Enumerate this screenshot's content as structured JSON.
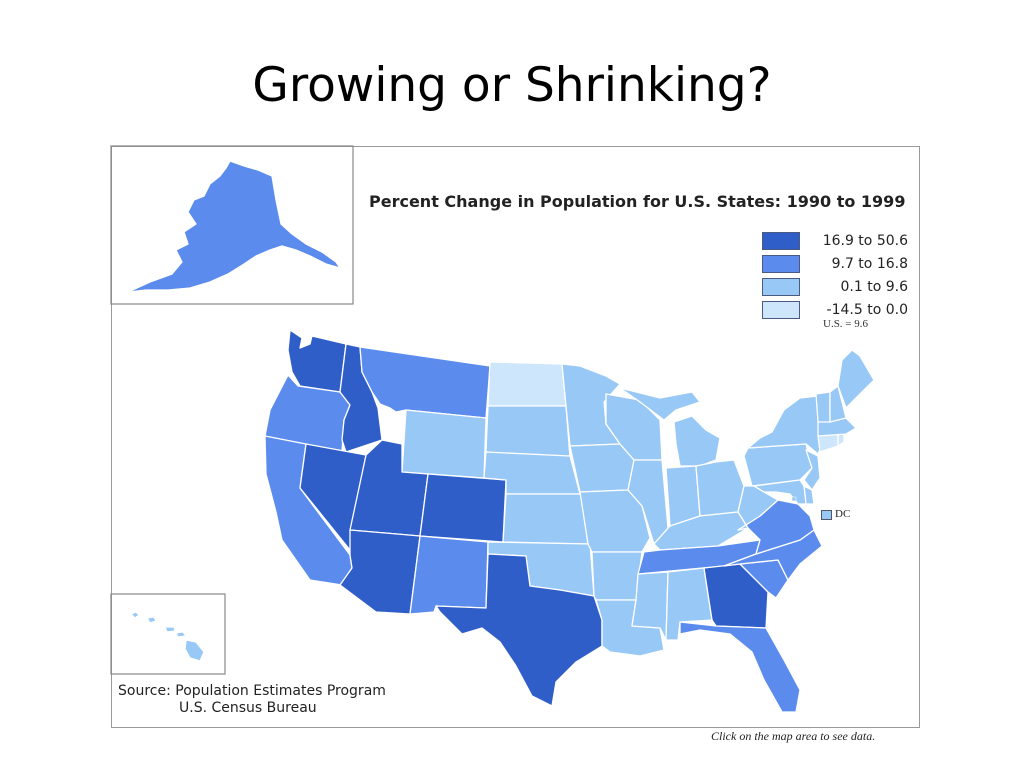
{
  "slide": {
    "title": "Growing or Shrinking?"
  },
  "map": {
    "title": "Percent Change in Population for U.S. States: 1990 to 1999",
    "us_average": "U.S. = 9.6",
    "dc_label": "DC",
    "source_line1": "Source: Population Estimates Program",
    "source_line2": "U.S. Census Bureau",
    "footnote": "Click on the map area to see data."
  },
  "legend": [
    {
      "label": "16.9 to 50.6",
      "color": "#2f5ec8"
    },
    {
      "label": "9.7 to 16.8",
      "color": "#5b8ced"
    },
    {
      "label": "0.1 to 9.6",
      "color": "#98c8f6"
    },
    {
      "label": "-14.5 to 0.0",
      "color": "#cde6fb"
    }
  ],
  "classes": {
    "c1": "#2f5ec8",
    "c2": "#5b8ced",
    "c3": "#98c8f6",
    "c4": "#cde6fb"
  },
  "states": {
    "WA": "c1",
    "ID": "c1",
    "NV": "c1",
    "UT": "c1",
    "CO": "c1",
    "AZ": "c1",
    "TX": "c1",
    "GA": "c1",
    "OR": "c2",
    "MT": "c2",
    "CA": "c2",
    "NM": "c2",
    "TN": "c2",
    "NC": "c2",
    "SC": "c2",
    "VA": "c2",
    "FL": "c2",
    "AK": "c2",
    "ND": "c4",
    "CT": "c4",
    "RI": "c4",
    "WY": "c3",
    "SD": "c3",
    "NE": "c3",
    "KS": "c3",
    "OK": "c3",
    "MN": "c3",
    "IA": "c3",
    "MO": "c3",
    "AR": "c3",
    "LA": "c3",
    "WI": "c3",
    "IL": "c3",
    "MI": "c3",
    "IN": "c3",
    "OH": "c3",
    "KY": "c3",
    "MS": "c3",
    "AL": "c3",
    "WV": "c3",
    "PA": "c3",
    "NY": "c3",
    "NJ": "c3",
    "DE": "c3",
    "MD": "c3",
    "VT": "c3",
    "NH": "c3",
    "ME": "c3",
    "MA": "c3",
    "HI": "c3",
    "DC": "c3"
  }
}
